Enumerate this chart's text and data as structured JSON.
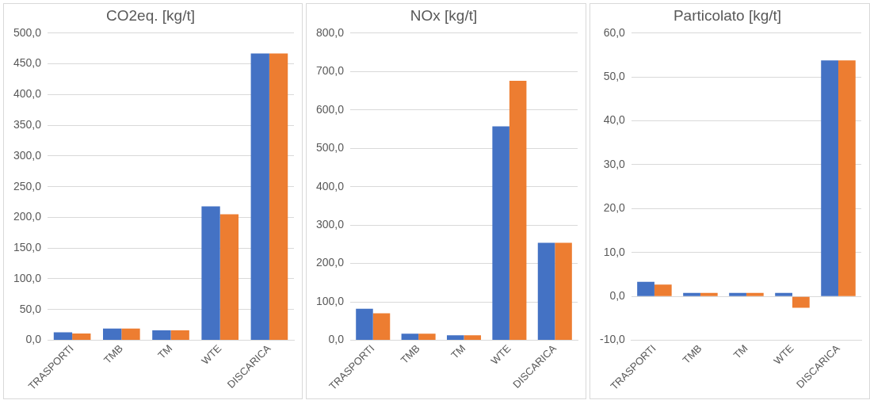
{
  "chart_data": [
    {
      "type": "bar",
      "title": "CO2eq. [kg/t]",
      "categories": [
        "TRASPORTI",
        "TMB",
        "TM",
        "WTE",
        "DISCARICA"
      ],
      "series": [
        {
          "color": "#4472c4",
          "values": [
            13,
            19,
            16,
            218,
            467
          ]
        },
        {
          "color": "#ed7d31",
          "values": [
            11,
            19,
            16,
            205,
            467
          ]
        }
      ],
      "ylim": [
        0,
        500
      ],
      "yticks": [
        {
          "value": 0,
          "label": "0,0"
        },
        {
          "value": 50,
          "label": "50,0"
        },
        {
          "value": 100,
          "label": "100,0"
        },
        {
          "value": 150,
          "label": "150,0"
        },
        {
          "value": 200,
          "label": "200,0"
        },
        {
          "value": 250,
          "label": "250,0"
        },
        {
          "value": 300,
          "label": "300,0"
        },
        {
          "value": 350,
          "label": "350,0"
        },
        {
          "value": 400,
          "label": "400,0"
        },
        {
          "value": 450,
          "label": "450,0"
        },
        {
          "value": 500,
          "label": "500,0"
        }
      ],
      "grid": "y",
      "legend": false
    },
    {
      "type": "bar",
      "title": "NOx [kg/t]",
      "categories": [
        "TRASPORTI",
        "TMB",
        "TM",
        "WTE",
        "DISCARICA"
      ],
      "series": [
        {
          "color": "#4472c4",
          "values": [
            82,
            17,
            13,
            557,
            254
          ]
        },
        {
          "color": "#ed7d31",
          "values": [
            70,
            17,
            13,
            676,
            254
          ]
        }
      ],
      "ylim": [
        0,
        800
      ],
      "yticks": [
        {
          "value": 0,
          "label": "0,0"
        },
        {
          "value": 100,
          "label": "100,0"
        },
        {
          "value": 200,
          "label": "200,0"
        },
        {
          "value": 300,
          "label": "300,0"
        },
        {
          "value": 400,
          "label": "400,0"
        },
        {
          "value": 500,
          "label": "500,0"
        },
        {
          "value": 600,
          "label": "600,0"
        },
        {
          "value": 700,
          "label": "700,0"
        },
        {
          "value": 800,
          "label": "800,0"
        }
      ],
      "grid": "y",
      "legend": false
    },
    {
      "type": "bar",
      "title": "Particolato [kg/t]",
      "categories": [
        "TRASPORTI",
        "TMB",
        "TM",
        "WTE",
        "DISCARICA"
      ],
      "series": [
        {
          "color": "#4472c4",
          "values": [
            3.3,
            0.8,
            0.8,
            0.8,
            53.8
          ]
        },
        {
          "color": "#ed7d31",
          "values": [
            2.7,
            0.8,
            0.8,
            -2.6,
            53.8
          ]
        }
      ],
      "ylim": [
        -10,
        60
      ],
      "yticks": [
        {
          "value": -10,
          "label": "-10,0"
        },
        {
          "value": 0,
          "label": "0,0"
        },
        {
          "value": 10,
          "label": "10,0"
        },
        {
          "value": 20,
          "label": "20,0"
        },
        {
          "value": 30,
          "label": "30,0"
        },
        {
          "value": 40,
          "label": "40,0"
        },
        {
          "value": 50,
          "label": "50,0"
        },
        {
          "value": 60,
          "label": "60,0"
        }
      ],
      "grid": "y",
      "legend": false
    }
  ]
}
